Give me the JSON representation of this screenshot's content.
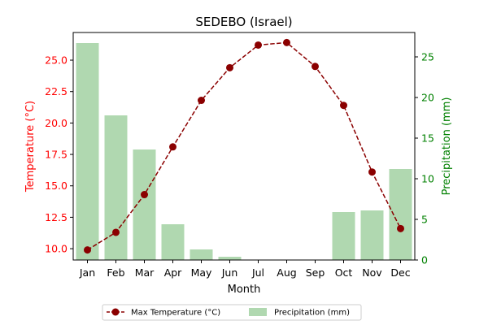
{
  "chart_data": {
    "type": "bar+line",
    "title": "SEDEBO (Israel)",
    "xlabel": "Month",
    "ylabel_left": "Temperature (°C)",
    "ylabel_right": "Precipitation (mm)",
    "categories": [
      "Jan",
      "Feb",
      "Mar",
      "Apr",
      "May",
      "Jun",
      "Jul",
      "Aug",
      "Sep",
      "Oct",
      "Nov",
      "Dec"
    ],
    "left_ylim": [
      9.1,
      27.2
    ],
    "right_ylim": [
      0,
      28
    ],
    "left_ticks": [
      "10.0",
      "12.5",
      "15.0",
      "17.5",
      "20.0",
      "22.5",
      "25.0"
    ],
    "right_ticks": [
      "0",
      "5",
      "10",
      "15",
      "20",
      "25"
    ],
    "series": [
      {
        "name": "Max Temperature (°C)",
        "kind": "line",
        "axis": "left",
        "values": [
          9.9,
          11.3,
          14.3,
          18.1,
          21.8,
          24.4,
          26.2,
          26.4,
          24.5,
          21.4,
          16.1,
          11.6
        ]
      },
      {
        "name": "Precipitation (mm)",
        "kind": "bar",
        "axis": "right",
        "values": [
          26.7,
          17.8,
          13.6,
          4.4,
          1.3,
          0.4,
          0,
          0,
          0,
          5.9,
          6.1,
          11.2
        ]
      }
    ],
    "colors": {
      "temperature": "#8b0000",
      "precip_bar": "#b0d8b0",
      "left_axis": "#ff0000",
      "right_axis": "#008000"
    },
    "legend": {
      "placement": "bottom-center",
      "entries": [
        "Max Temperature (°C)",
        "Precipitation (mm)"
      ]
    },
    "grid": false
  }
}
